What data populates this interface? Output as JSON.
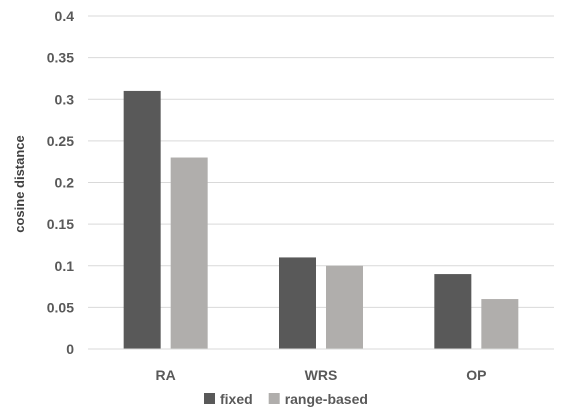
{
  "chart_data": {
    "type": "bar",
    "categories": [
      "RA",
      "WRS",
      "OP"
    ],
    "series": [
      {
        "name": "fixed",
        "color": "#595959",
        "values": [
          0.31,
          0.11,
          0.09
        ]
      },
      {
        "name": "range-based",
        "color": "#b0aeac",
        "values": [
          0.23,
          0.1,
          0.06
        ]
      }
    ],
    "ylabel": "cosine distance",
    "xlabel": "",
    "ylim": [
      0,
      0.4
    ],
    "yticks": [
      "0",
      "0.05",
      "0.1",
      "0.15",
      "0.2",
      "0.25",
      "0.3",
      "0.35",
      "0.4"
    ],
    "grid": true,
    "legend_position": "bottom"
  }
}
